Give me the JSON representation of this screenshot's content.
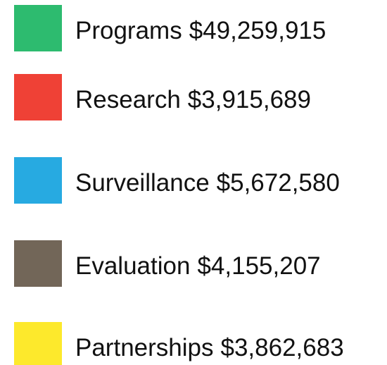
{
  "items": [
    {
      "name": "Programs",
      "amount": "$49,259,915",
      "color": "#2dbb6f"
    },
    {
      "name": "Research",
      "amount": "$3,915,689",
      "color": "#ef4136"
    },
    {
      "name": "Surveillance",
      "amount": "$5,672,580",
      "color": "#27aae1"
    },
    {
      "name": "Evaluation",
      "amount": "$4,155,207",
      "color": "#726658"
    },
    {
      "name": "Partnerships",
      "amount": "$3,862,683",
      "color": "#fde92c"
    }
  ]
}
